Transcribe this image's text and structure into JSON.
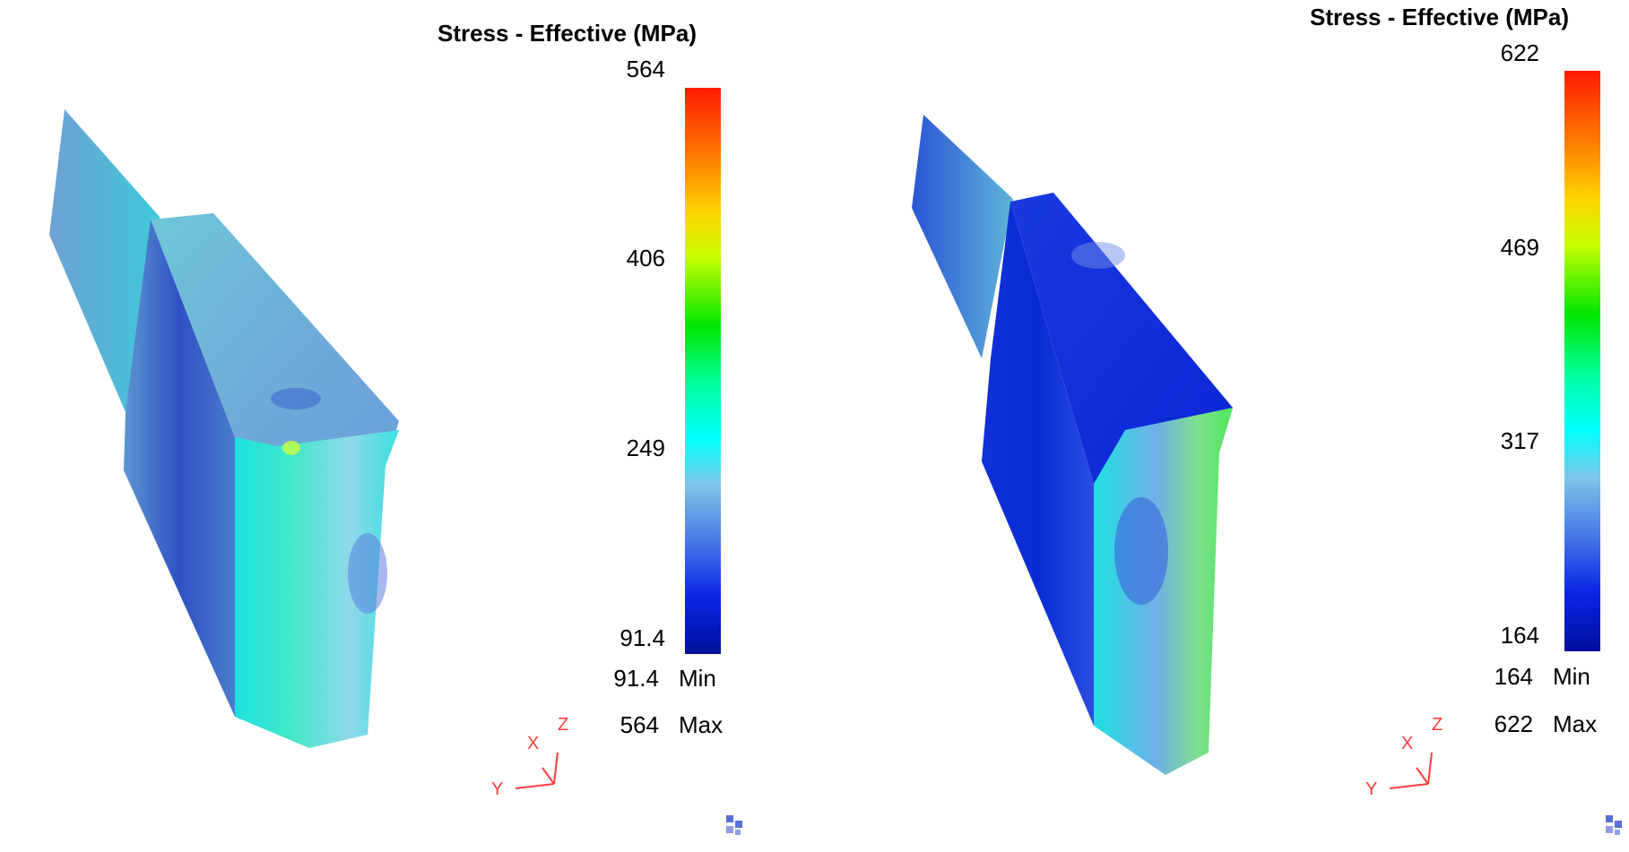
{
  "panels": [
    {
      "legend": {
        "title": "Stress - Effective (MPa)",
        "ticks": [
          "564",
          "406",
          "249",
          "91.4"
        ],
        "min_value": "91.4",
        "min_label": "Min",
        "max_value": "564",
        "max_label": "Max"
      },
      "triad": {
        "x": "X",
        "y": "Y",
        "z": "Z"
      }
    },
    {
      "legend": {
        "title": "Stress - Effective (MPa)",
        "ticks": [
          "622",
          "469",
          "317",
          "164"
        ],
        "min_value": "164",
        "min_label": "Min",
        "max_value": "622",
        "max_label": "Max"
      },
      "triad": {
        "x": "X",
        "y": "Y",
        "z": "Z"
      }
    }
  ],
  "colors": {
    "triad_axes": "#ff3b3b",
    "logo": "#5a6fd6"
  }
}
